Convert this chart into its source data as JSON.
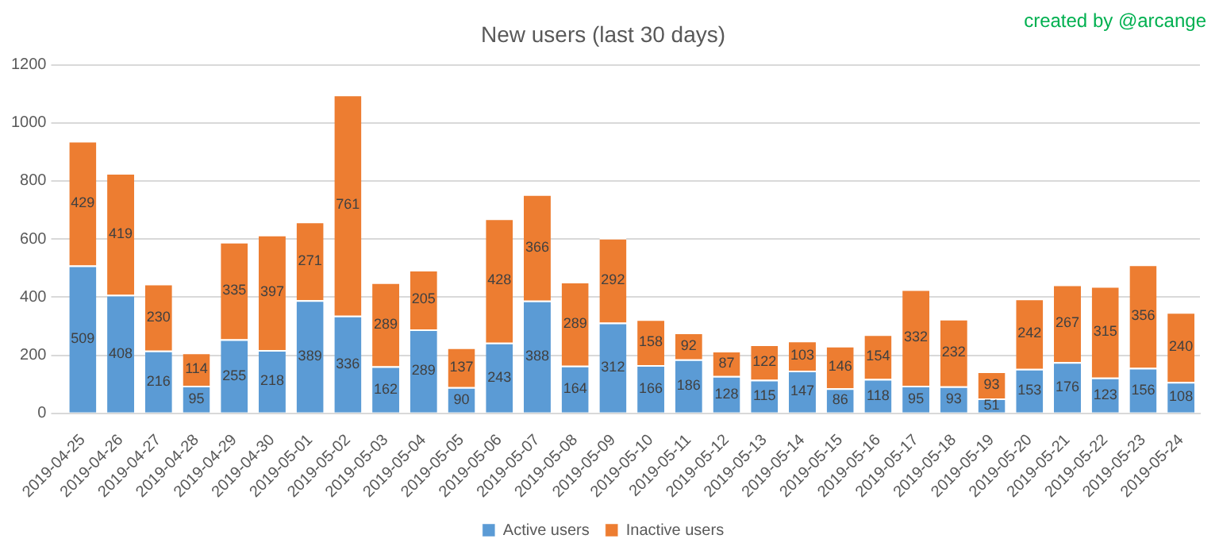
{
  "chart_data": {
    "type": "bar",
    "title": "New users (last 30 days)",
    "annotations": [
      "created by @arcange"
    ],
    "categories": [
      "2019-04-25",
      "2019-04-26",
      "2019-04-27",
      "2019-04-28",
      "2019-04-29",
      "2019-04-30",
      "2019-05-01",
      "2019-05-02",
      "2019-05-03",
      "2019-05-04",
      "2019-05-05",
      "2019-05-06",
      "2019-05-07",
      "2019-05-08",
      "2019-05-09",
      "2019-05-10",
      "2019-05-11",
      "2019-05-12",
      "2019-05-13",
      "2019-05-14",
      "2019-05-15",
      "2019-05-16",
      "2019-05-17",
      "2019-05-18",
      "2019-05-19",
      "2019-05-20",
      "2019-05-21",
      "2019-05-22",
      "2019-05-23",
      "2019-05-24"
    ],
    "series": [
      {
        "name": "Active users",
        "color": "#5b9bd5",
        "values": [
          509,
          408,
          216,
          95,
          255,
          218,
          389,
          336,
          162,
          289,
          90,
          243,
          388,
          164,
          312,
          166,
          186,
          128,
          115,
          147,
          86,
          118,
          95,
          93,
          51,
          153,
          176,
          123,
          156,
          108
        ]
      },
      {
        "name": "Inactive users",
        "color": "#ed7d31",
        "values": [
          429,
          419,
          230,
          114,
          335,
          397,
          271,
          761,
          289,
          205,
          137,
          428,
          366,
          289,
          292,
          158,
          92,
          87,
          122,
          103,
          146,
          154,
          332,
          232,
          93,
          242,
          267,
          315,
          356,
          240
        ]
      }
    ],
    "stacked": true,
    "data_labels": true,
    "ylim": [
      0,
      1200
    ],
    "yticks": [
      0,
      200,
      400,
      600,
      800,
      1000,
      1200
    ],
    "grid": "y",
    "legend": "bottom"
  }
}
